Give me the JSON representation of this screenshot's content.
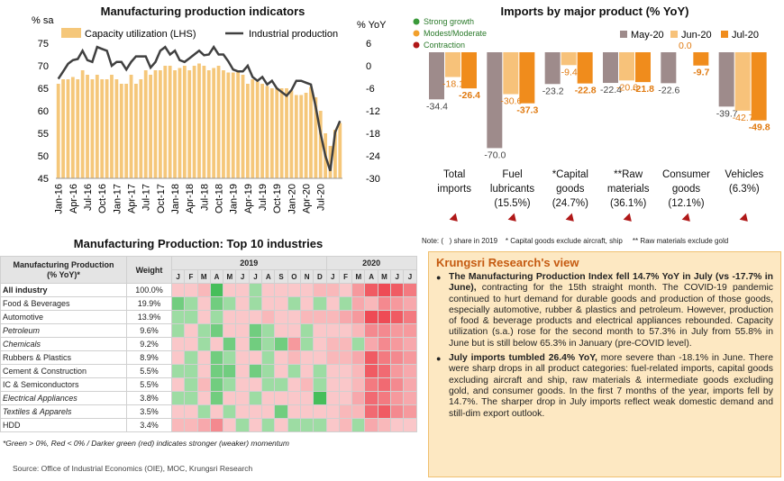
{
  "left_chart": {
    "title": "Manufacturing production indicators",
    "y_left_label": "% sa",
    "y_right_label": "% YoY",
    "legend_bar": "Capacity utilization (LHS)",
    "legend_line": "Industrial production",
    "colors": {
      "bar": "#f5c77a",
      "line": "#404040"
    }
  },
  "right_chart": {
    "title": "Imports by major product (% YoY)",
    "legend_growth": [
      "Strong growth",
      "Modest/Moderate",
      "Contraction"
    ],
    "legend_growth_colors": [
      "#3a9a3a",
      "#f2a02c",
      "#b01818"
    ],
    "legend_series": [
      "May-20",
      "Jun-20",
      "Jul-20"
    ],
    "note": "Note: (   ) share in 2019    * Capital goods exclude aircraft, ship     ** Raw materials exclude gold",
    "categories": [
      {
        "line1": "Total",
        "line2": "imports",
        "line3": ""
      },
      {
        "line1": "Fuel",
        "line2": "lubricants",
        "line3": "(15.5%)"
      },
      {
        "line1": "*Capital",
        "line2": "goods",
        "line3": "(24.7%)"
      },
      {
        "line1": "**Raw",
        "line2": "materials",
        "line3": "(36.1%)"
      },
      {
        "line1": "Consumer",
        "line2": "goods",
        "line3": "(12.1%)"
      },
      {
        "line1": "Vehicles",
        "line2": "(6.3%)",
        "line3": ""
      }
    ]
  },
  "chart_data": [
    {
      "type": "bar",
      "title": "Manufacturing production indicators",
      "series": [
        {
          "name": "Capacity utilization (LHS)",
          "axis": "left",
          "values": [
            66,
            67,
            67,
            67.5,
            67,
            69,
            68,
            67,
            68,
            67,
            67,
            68,
            67,
            66,
            66,
            68,
            66,
            67,
            69,
            68,
            69,
            69,
            70,
            70,
            69,
            69.5,
            70,
            69,
            70,
            70.5,
            70,
            69,
            69.5,
            70,
            69,
            68.5,
            68.5,
            68.8,
            68,
            66,
            67,
            66.5,
            66,
            65.5,
            65,
            65,
            65,
            65,
            64.5,
            63.5,
            63.5,
            64,
            65.3,
            63,
            60,
            55,
            52.2,
            55.8,
            57.3
          ]
        },
        {
          "name": "Industrial production",
          "axis": "right",
          "values": [
            -3.5,
            -1.5,
            0.5,
            1.5,
            1.8,
            4,
            1.5,
            1,
            5,
            4.5,
            4,
            0,
            1,
            1,
            -1,
            1,
            2.5,
            2.5,
            2.5,
            -0.5,
            1,
            4,
            5,
            3,
            4,
            1.5,
            1,
            2,
            3,
            4,
            2.8,
            3,
            5,
            3,
            3,
            1.2,
            -1,
            -1.5,
            -1.5,
            0,
            -3,
            -4,
            -3,
            -5,
            -4,
            -6,
            -7,
            -8,
            -6.5,
            -4,
            -4,
            -4.5,
            -5,
            -11,
            -18,
            -24,
            -28,
            -17.7,
            -14.7
          ]
        }
      ],
      "x_tick_labels": [
        "Jan-16",
        "Apr-16",
        "Jul-16",
        "Oct-16",
        "Jan-17",
        "Apr-17",
        "Jul-17",
        "Oct-17",
        "Jan-18",
        "Apr-18",
        "Jul-18",
        "Oct-18",
        "Jan-19",
        "Apr-19",
        "Jul-19",
        "Oct-19",
        "Jan-20",
        "Apr-20",
        "Jul-20"
      ],
      "left_ticks": [
        45,
        50,
        55,
        60,
        65,
        70,
        75
      ],
      "right_ticks": [
        -30,
        -24,
        -18,
        -12,
        -6,
        0,
        6
      ],
      "ylim_left": [
        45,
        75
      ],
      "ylim_right": [
        -30,
        6
      ]
    },
    {
      "type": "bar",
      "title": "Imports by major product (% YoY)",
      "categories": [
        "Total imports",
        "Fuel lubricants",
        "*Capital goods",
        "**Raw materials",
        "Consumer goods",
        "Vehicles"
      ],
      "series": [
        {
          "name": "May-20",
          "color": "#9e8b8b",
          "values": [
            -34.4,
            -70.0,
            -23.2,
            -22.4,
            -22.6,
            -39.7
          ]
        },
        {
          "name": "Jun-20",
          "color": "#f7c27a",
          "values": [
            -18.1,
            -30.6,
            -9.4,
            -20.6,
            0.0,
            -42.7
          ]
        },
        {
          "name": "Jul-20",
          "color": "#f08c1c",
          "values": [
            -26.4,
            -37.3,
            -22.8,
            -21.8,
            -9.7,
            -49.8
          ]
        }
      ],
      "data_labels": [
        [
          "-34.4",
          "-18.1",
          "-26.4"
        ],
        [
          "-70.0",
          "-30.6",
          "-37.3"
        ],
        [
          "-23.2",
          "-9.4",
          "-22.8"
        ],
        [
          "-22.4",
          "-20.6",
          "-21.8"
        ],
        [
          "-22.6",
          "0.0",
          "-9.7"
        ],
        [
          "-39.7",
          "-42.7",
          "-49.8"
        ]
      ],
      "ylim": [
        -75,
        2
      ]
    },
    {
      "type": "heatmap",
      "title": "Manufacturing Production: Top 10 industries",
      "header": {
        "col1": "Manufacturing Production",
        "col1b": "(% YoY)*",
        "col2": "Weight",
        "year1": "2019",
        "year2": "2020"
      },
      "months": [
        "J",
        "F",
        "M",
        "A",
        "M",
        "J",
        "J",
        "A",
        "S",
        "O",
        "N",
        "D",
        "J",
        "F",
        "M",
        "A",
        "M",
        "J",
        "J"
      ],
      "rows": [
        {
          "name": "All industry",
          "weight": "100.0%",
          "bold": true,
          "italic": false,
          "values": [
            -1,
            -1,
            -2,
            3,
            -1,
            -1,
            1,
            -1,
            -1,
            -1,
            -1,
            -2,
            -2,
            -1,
            -4,
            -8,
            -9,
            -8,
            -6
          ]
        },
        {
          "name": "Food & Beverages",
          "weight": "19.9%",
          "bold": false,
          "italic": false,
          "values": [
            2,
            1,
            -1,
            2,
            1,
            -1,
            1,
            -1,
            -1,
            1,
            -1,
            1,
            -1,
            1,
            -3,
            -2,
            -5,
            -4,
            -3
          ]
        },
        {
          "name": "Automotive",
          "weight": "13.9%",
          "bold": false,
          "italic": false,
          "values": [
            1,
            1,
            -1,
            1,
            -1,
            -1,
            -1,
            -2,
            -1,
            -1,
            -2,
            -2,
            -2,
            -3,
            -4,
            -9,
            -9,
            -8,
            -6
          ]
        },
        {
          "name": "Petroleum",
          "weight": "9.6%",
          "bold": false,
          "italic": true,
          "values": [
            1,
            -1,
            1,
            2,
            -1,
            -1,
            2,
            1,
            -1,
            -1,
            1,
            -1,
            -1,
            -1,
            -2,
            -5,
            -5,
            -4,
            -4
          ]
        },
        {
          "name": "Chemicals",
          "weight": "9.2%",
          "bold": false,
          "italic": true,
          "values": [
            -1,
            -1,
            1,
            -1,
            2,
            -1,
            2,
            1,
            2,
            -4,
            1,
            -1,
            -2,
            -2,
            1,
            -3,
            -5,
            -4,
            -3
          ]
        },
        {
          "name": "Rubbers & Plastics",
          "weight": "8.9%",
          "bold": false,
          "italic": false,
          "values": [
            -1,
            1,
            -1,
            2,
            1,
            -1,
            -1,
            1,
            -1,
            -2,
            -1,
            -1,
            -2,
            -2,
            -3,
            -8,
            -6,
            -5,
            -4
          ]
        },
        {
          "name": "Cement & Construction",
          "weight": "5.5%",
          "bold": false,
          "italic": false,
          "values": [
            1,
            1,
            -1,
            2,
            2,
            -1,
            2,
            1,
            -1,
            1,
            -1,
            1,
            -1,
            -1,
            -2,
            -8,
            -7,
            -4,
            -3
          ]
        },
        {
          "name": "IC & Semiconductors",
          "weight": "5.5%",
          "bold": false,
          "italic": false,
          "values": [
            -1,
            1,
            -2,
            2,
            1,
            -1,
            -1,
            1,
            1,
            -1,
            -2,
            1,
            -1,
            -1,
            -2,
            -6,
            -7,
            -5,
            -3
          ]
        },
        {
          "name": "Electrical Appliances",
          "weight": "3.8%",
          "bold": false,
          "italic": true,
          "values": [
            1,
            1,
            -1,
            2,
            -1,
            -1,
            1,
            -1,
            -1,
            -1,
            -1,
            3,
            -1,
            -1,
            -3,
            -7,
            -6,
            -4,
            -3
          ]
        },
        {
          "name": "Textiles & Apparels",
          "weight": "3.5%",
          "bold": false,
          "italic": true,
          "values": [
            -1,
            -1,
            1,
            -1,
            1,
            -1,
            -1,
            -1,
            2,
            -1,
            -1,
            -1,
            -1,
            -2,
            -2,
            -7,
            -8,
            -5,
            -4
          ]
        },
        {
          "name": "HDD",
          "weight": "3.4%",
          "bold": false,
          "italic": false,
          "values": [
            -2,
            -2,
            -3,
            -5,
            -1,
            1,
            -1,
            1,
            -1,
            1,
            1,
            1,
            -1,
            -2,
            1,
            -3,
            -2,
            -1,
            -1
          ]
        }
      ],
      "footnote": "*Green > 0%, Red < 0% / Darker green (red) indicates stronger (weaker) momentum"
    }
  ],
  "source": "Source: Office of Industrial Economics (OIE), MOC, Krungsri Research",
  "view": {
    "title": "Krungsri Research's view",
    "p1_bold": "The Manufacturing Production Index fell 14.7% YoY in July (vs -17.7% in June),",
    "p1_rest": " contracting for the 15th straight month. The COVID-19 pandemic continued to hurt demand for durable goods and production of those goods, especially automotive, rubber & plastics and petroleum. However, production of food & beverage products and electrical appliances rebounded. Capacity utilization (s.a.)  rose for the second month to 57.3% in July from 55.8% in June but is still below 65.3% in January (pre-COVID level).",
    "p2_bold": "July imports tumbled 26.4% YoY,",
    "p2_rest": " more severe than -18.1% in June. There were sharp drops in all product categories: fuel-related imports, capital goods excluding aircraft and ship, raw materials & intermediate goods excluding gold, and consumer goods. In the first 7 months of the year, imports fell by 14.7%. The sharper drop in July imports reflect weak domestic demand and still-dim export outlook."
  }
}
